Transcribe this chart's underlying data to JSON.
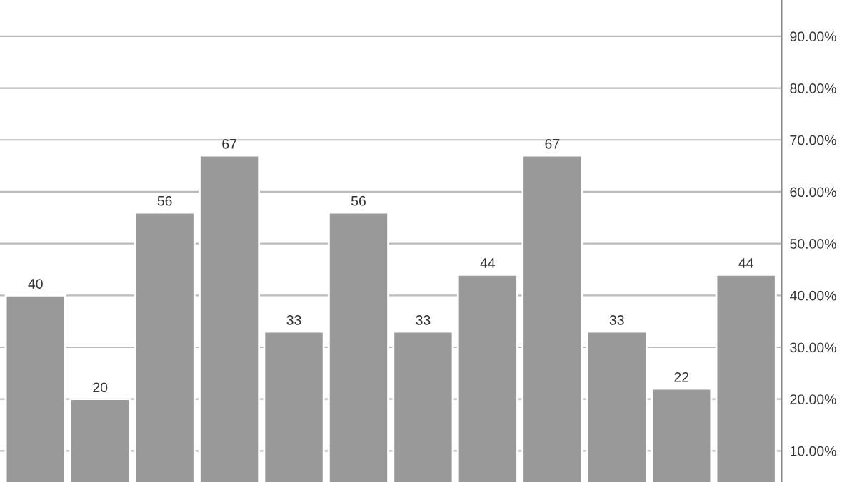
{
  "chart_data": {
    "type": "bar",
    "categories": [
      null,
      null,
      null,
      null,
      null,
      null,
      null,
      null,
      null,
      null,
      null,
      null
    ],
    "values": [
      40,
      20,
      56,
      67,
      33,
      56,
      33,
      44,
      67,
      33,
      22,
      44
    ],
    "color": "#999999",
    "data_labels": true,
    "ylim": [
      4,
      97
    ],
    "yticks": [
      {
        "value": 10,
        "label": "10.00%"
      },
      {
        "value": 20,
        "label": "20.00%"
      },
      {
        "value": 30,
        "label": "30.00%"
      },
      {
        "value": 40,
        "label": "40.00%"
      },
      {
        "value": 50,
        "label": "50.00%"
      },
      {
        "value": 60,
        "label": "60.00%"
      },
      {
        "value": 70,
        "label": "70.00%"
      },
      {
        "value": 80,
        "label": "80.00%"
      },
      {
        "value": 90,
        "label": "90.00%"
      }
    ],
    "grid": "y",
    "tick_labels": "y"
  }
}
